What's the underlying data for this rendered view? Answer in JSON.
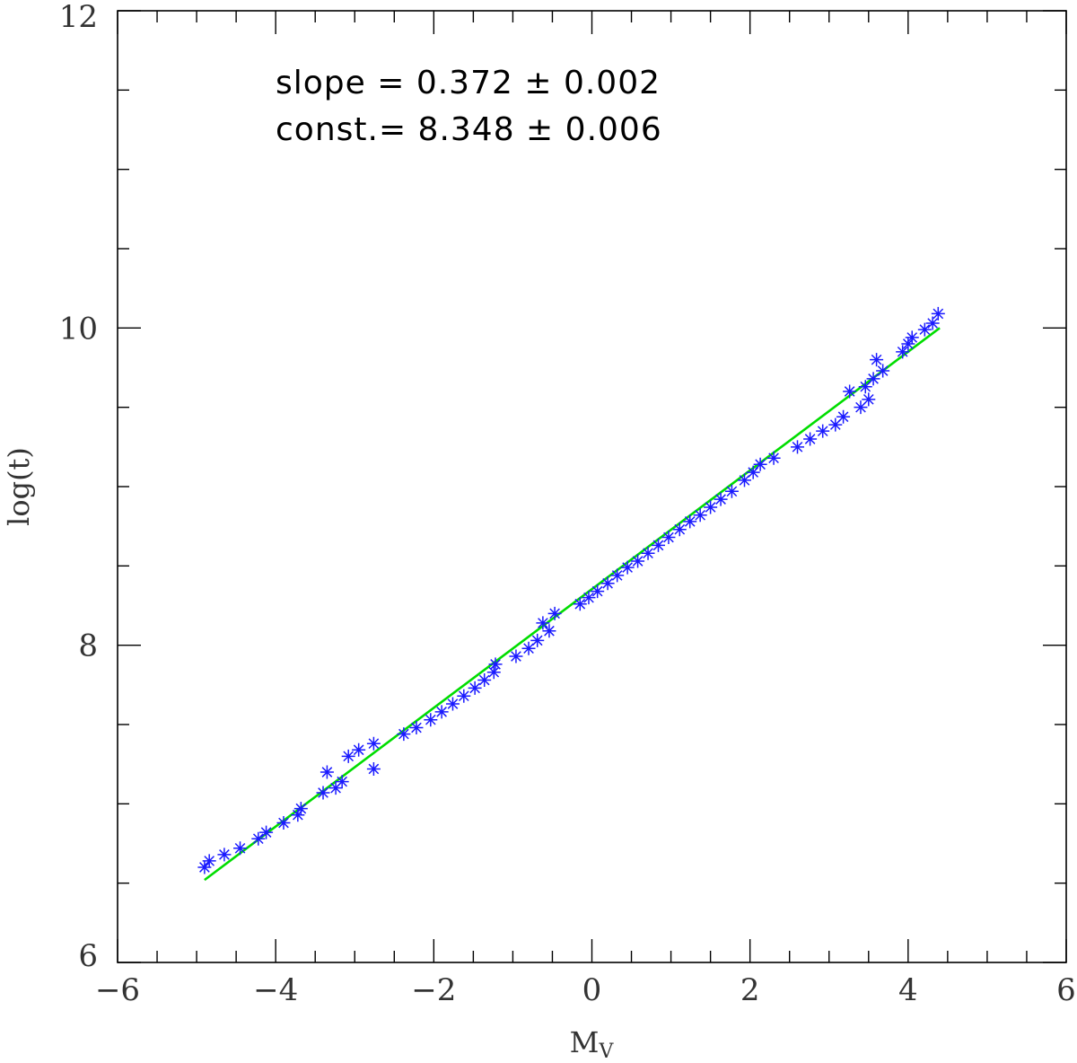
{
  "chart_data": {
    "type": "scatter",
    "xlabel": "M",
    "xlabel_sub": "V",
    "ylabel": "log(t)",
    "xlim": [
      -6,
      6
    ],
    "ylim": [
      6,
      12
    ],
    "x_ticks": [
      -6,
      -4,
      -2,
      0,
      2,
      4,
      6
    ],
    "x_tick_labels": [
      "−6",
      "−4",
      "−2",
      "0",
      "2",
      "4",
      "6"
    ],
    "y_ticks": [
      6,
      8,
      10,
      12
    ],
    "y_tick_labels": [
      "6",
      "8",
      "10",
      "12"
    ],
    "grid": false,
    "annotations": [
      "slope = 0.372 ± 0.002",
      "const.= 8.348 ± 0.006"
    ],
    "colors": {
      "points": "#1a1aff",
      "fit": "#00dd00",
      "axes": "#000000"
    },
    "series": [
      {
        "kind": "points",
        "marker": "asterisk",
        "x": [
          -4.9,
          -4.84,
          -4.65,
          -4.45,
          -4.22,
          -4.12,
          -3.9,
          -3.72,
          -3.68,
          -3.4,
          -3.35,
          -3.24,
          -3.16,
          -3.08,
          -2.95,
          -2.76,
          -2.76,
          -2.38,
          -2.22,
          -2.04,
          -1.9,
          -1.76,
          -1.62,
          -1.48,
          -1.36,
          -1.24,
          -1.22,
          -0.96,
          -0.8,
          -0.69,
          -0.62,
          -0.54,
          -0.47,
          -0.15,
          -0.04,
          0.07,
          0.2,
          0.32,
          0.45,
          0.58,
          0.71,
          0.84,
          0.97,
          1.11,
          1.24,
          1.37,
          1.5,
          1.63,
          1.77,
          1.93,
          2.04,
          2.13,
          2.3,
          2.6,
          2.76,
          2.92,
          3.08,
          3.18,
          3.26,
          3.4,
          3.46,
          3.5,
          3.56,
          3.6,
          3.68,
          3.93,
          4.0,
          4.05,
          4.21,
          4.31,
          4.38
        ],
        "y": [
          6.6,
          6.64,
          6.68,
          6.72,
          6.78,
          6.82,
          6.88,
          6.93,
          6.97,
          7.07,
          7.2,
          7.1,
          7.14,
          7.3,
          7.34,
          7.38,
          7.22,
          7.44,
          7.48,
          7.53,
          7.58,
          7.63,
          7.68,
          7.73,
          7.78,
          7.83,
          7.88,
          7.93,
          7.98,
          8.03,
          8.14,
          8.09,
          8.2,
          8.26,
          8.3,
          8.34,
          8.39,
          8.44,
          8.49,
          8.53,
          8.58,
          8.63,
          8.68,
          8.73,
          8.78,
          8.82,
          8.87,
          8.92,
          8.97,
          9.04,
          9.09,
          9.14,
          9.18,
          9.25,
          9.3,
          9.35,
          9.39,
          9.44,
          9.6,
          9.5,
          9.63,
          9.55,
          9.68,
          9.8,
          9.73,
          9.85,
          9.9,
          9.94,
          9.99,
          10.03,
          10.09
        ]
      },
      {
        "kind": "line",
        "x": [
          -4.9,
          4.4
        ],
        "y": [
          6.52,
          10.0
        ]
      }
    ]
  }
}
